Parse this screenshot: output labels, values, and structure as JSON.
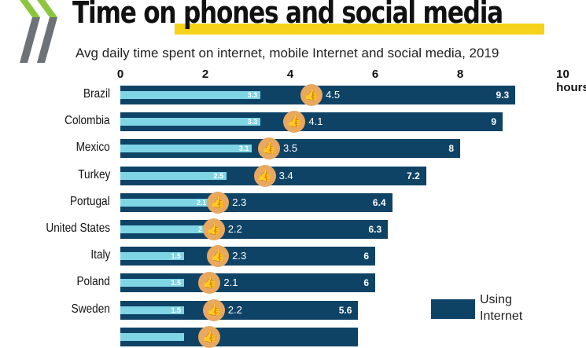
{
  "chart_data": {
    "type": "bar",
    "title": "Time on phones and social media",
    "subtitle": "Avg daily time spent on internet, mobile Internet and social media, 2019",
    "xlim": [
      0,
      10
    ],
    "x_ticks": [
      "0",
      "2",
      "4",
      "6",
      "8",
      "10 hours"
    ],
    "categories": [
      "Brazil",
      "Colombia",
      "Mexico",
      "Turkey",
      "Portugal",
      "United States",
      "Italy",
      "Poland",
      "Sweden",
      ""
    ],
    "series": [
      {
        "name": "Using Internet",
        "color": "#0e4366",
        "values": [
          9.3,
          9.0,
          8.0,
          7.2,
          6.4,
          6.3,
          6.0,
          6.0,
          5.6,
          5.6
        ]
      },
      {
        "color": "#7fd5e4",
        "values": [
          3.3,
          3.3,
          3.1,
          2.5,
          2.1,
          2.0,
          1.5,
          1.5,
          1.5,
          1.5
        ]
      },
      {
        "color": "#e8a85f",
        "marker": "thumbs-up-icon",
        "values": [
          4.5,
          4.1,
          3.5,
          3.4,
          2.3,
          2.2,
          2.3,
          2.1,
          2.2,
          2.1
        ]
      }
    ],
    "legend": {
      "position": "bottom-right",
      "label": "Using Internet"
    },
    "grid": false
  }
}
